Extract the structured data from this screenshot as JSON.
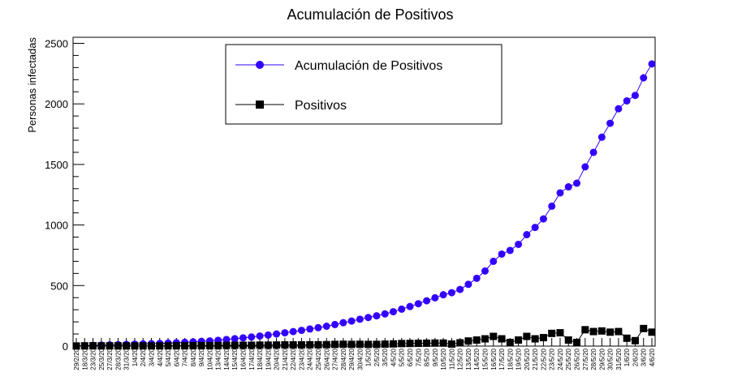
{
  "chart_data": {
    "type": "line",
    "title": "Acumulación de Positivos",
    "xlabel": "",
    "ylabel": "Personas infectadas",
    "ylim": [
      0,
      2550
    ],
    "yticks": [
      0,
      500,
      1000,
      1500,
      2000,
      2500
    ],
    "grid": false,
    "legend_placement": "top-center",
    "categories": [
      "29/2/20",
      "18/3/20",
      "23/3/20",
      "25/3/20",
      "27/3/20",
      "28/3/20",
      "31/3/20",
      "1/4/20",
      "2/4/20",
      "3/4/20",
      "4/4/20",
      "5/4/20",
      "6/4/20",
      "7/4/20",
      "8/4/20",
      "9/4/20",
      "10/4/20",
      "13/4/20",
      "14/4/20",
      "15/4/20",
      "16/4/20",
      "17/4/20",
      "18/4/20",
      "19/4/20",
      "20/4/20",
      "21/4/20",
      "22/4/20",
      "23/4/20",
      "24/4/20",
      "25/4/20",
      "26/4/20",
      "27/4/20",
      "28/4/20",
      "29/4/20",
      "30/4/20",
      "1/5/20",
      "2/5/20",
      "3/5/20",
      "4/5/20",
      "5/5/20",
      "6/5/20",
      "7/5/20",
      "8/5/20",
      "9/5/20",
      "10/5/20",
      "11/5/20",
      "12/5/20",
      "13/5/20",
      "14/5/20",
      "15/5/20",
      "16/5/20",
      "17/5/20",
      "18/5/20",
      "19/5/20",
      "20/5/20",
      "21/5/20",
      "22/5/20",
      "23/5/20",
      "24/5/20",
      "25/5/20",
      "26/5/20",
      "27/5/20",
      "28/5/20",
      "29/5/20",
      "30/5/20",
      "31/5/20",
      "1/6/20",
      "2/6/20",
      "3/6/20",
      "4/6/20"
    ],
    "series": [
      {
        "name": "Acumulación de Positivos",
        "color": "#3300ff",
        "marker": "circle",
        "values": [
          1,
          3,
          6,
          8,
          10,
          12,
          14,
          16,
          18,
          20,
          22,
          25,
          28,
          31,
          35,
          39,
          43,
          48,
          54,
          61,
          68,
          75,
          83,
          91,
          100,
          110,
          120,
          130,
          141,
          152,
          164,
          178,
          193,
          207,
          222,
          236,
          250,
          266,
          284,
          305,
          327,
          350,
          374,
          399,
          424,
          441,
          468,
          510,
          560,
          620,
          700,
          760,
          790,
          840,
          920,
          980,
          1050,
          1155,
          1265,
          1315,
          1345,
          1480,
          1600,
          1725,
          1840,
          1960,
          2025,
          2070,
          2215,
          2330
        ]
      },
      {
        "name": "Positivos",
        "color": "#000000",
        "marker": "square",
        "values": [
          1,
          2,
          3,
          2,
          2,
          2,
          2,
          2,
          2,
          2,
          2,
          3,
          3,
          3,
          4,
          4,
          4,
          5,
          6,
          7,
          7,
          7,
          8,
          8,
          9,
          10,
          10,
          10,
          11,
          11,
          12,
          14,
          15,
          14,
          15,
          14,
          14,
          16,
          18,
          21,
          22,
          23,
          24,
          25,
          25,
          17,
          27,
          42,
          50,
          60,
          80,
          60,
          30,
          50,
          80,
          60,
          70,
          105,
          110,
          50,
          30,
          135,
          120,
          125,
          115,
          120,
          65,
          45,
          145,
          115
        ]
      }
    ]
  }
}
